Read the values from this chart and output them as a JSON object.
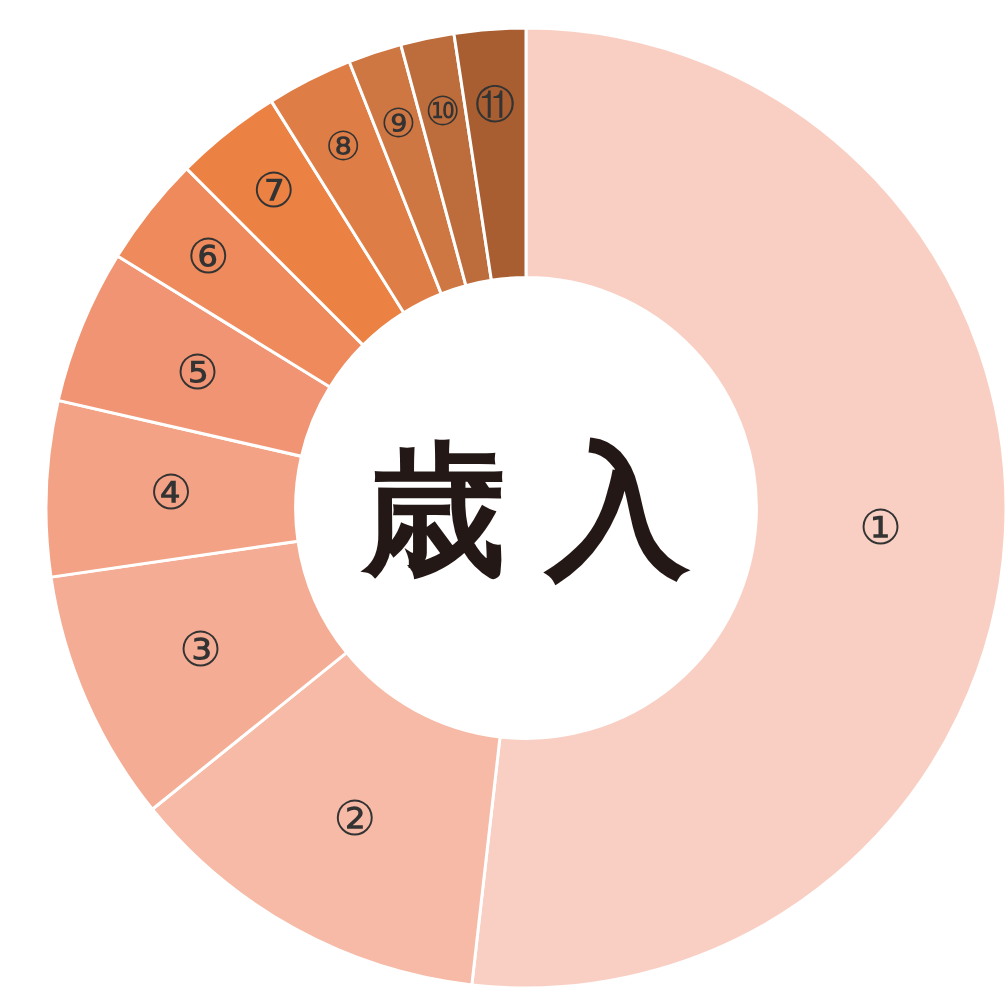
{
  "chart_data": {
    "type": "donut",
    "title": "歳 入",
    "categories": [
      "①",
      "②",
      "③",
      "④",
      "⑤",
      "⑥",
      "⑦",
      "⑧",
      "⑨",
      "⑩",
      "⑪"
    ],
    "values": [
      51.8,
      12.4,
      8.5,
      5.9,
      5.2,
      3.7,
      3.6,
      2.9,
      1.8,
      1.8,
      2.4
    ],
    "colors": [
      "#f9cfc3",
      "#f6baa6",
      "#f4ad94",
      "#f3a285",
      "#f19474",
      "#ee8a5c",
      "#ec8144",
      "#de7d45",
      "#cf7743",
      "#bd6c3b",
      "#a85e30"
    ],
    "data_labels": false
  }
}
